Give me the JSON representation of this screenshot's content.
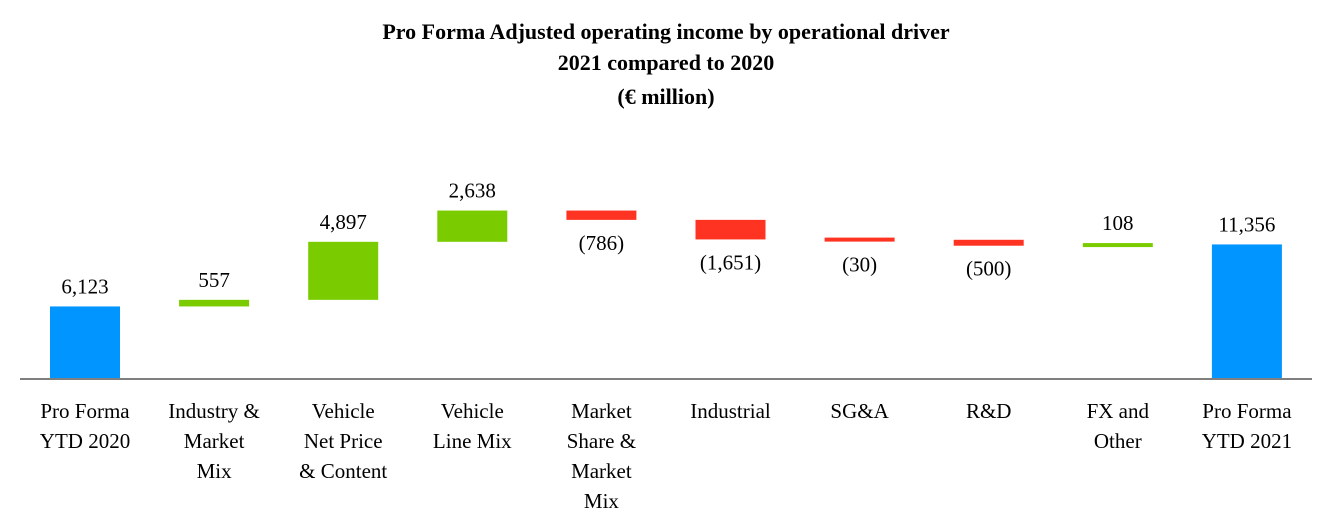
{
  "chart_data": {
    "type": "bar",
    "subtype": "waterfall",
    "title": [
      "Pro Forma Adjusted operating income by operational driver",
      "2021 compared to 2020",
      "(€ million)"
    ],
    "xlabel": "",
    "ylabel": "",
    "grid": false,
    "legend": "none",
    "colors": {
      "total": "#0095FF",
      "increase": "#7ACC00",
      "decrease": "#FF3322",
      "axis": "#7F7F7F"
    },
    "categories": [
      [
        "Pro Forma",
        "YTD 2020"
      ],
      [
        "Industry &",
        "Market",
        "Mix"
      ],
      [
        "Vehicle",
        "Net Price",
        "& Content"
      ],
      [
        "Vehicle",
        "Line Mix"
      ],
      [
        "Market",
        "Share &",
        "Market",
        "Mix"
      ],
      [
        "Industrial"
      ],
      [
        "SG&A"
      ],
      [
        "R&D"
      ],
      [
        "FX and",
        "Other"
      ],
      [
        "Pro Forma",
        "YTD 2021"
      ]
    ],
    "values": [
      6123,
      557,
      4897,
      2638,
      -786,
      -1651,
      -30,
      -500,
      108,
      11356
    ],
    "kinds": [
      "total",
      "increase",
      "increase",
      "increase",
      "decrease",
      "decrease",
      "decrease",
      "decrease",
      "increase",
      "total"
    ],
    "labels": [
      "6,123",
      "557",
      "4,897",
      "2,638",
      "(786)",
      "(1,651)",
      "(30)",
      "(500)",
      "108",
      "11,356"
    ]
  }
}
